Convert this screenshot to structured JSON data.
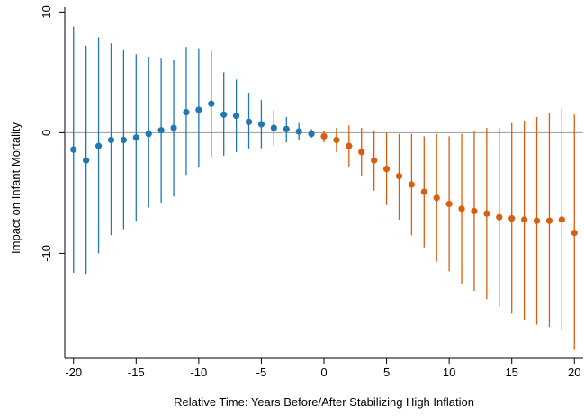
{
  "chart_data": {
    "type": "scatter",
    "title": "",
    "xlabel": "Relative Time:  Years Before/After Stabilizing High Inflation",
    "ylabel": "Impact on Infant Mortality",
    "xlim": [
      -20.7,
      20.7
    ],
    "ylim": [
      -18.7,
      10.4
    ],
    "xticks": [
      -20,
      -15,
      -10,
      -5,
      0,
      5,
      10,
      15,
      20
    ],
    "yticks": [
      -10,
      0,
      10
    ],
    "reference_line_y": 0,
    "grid": false,
    "legend": "none",
    "colors": {
      "before": "#1f77b4",
      "after": "#d95f0e",
      "reference": "#999999"
    },
    "series": [
      {
        "x": [
          -20,
          -19,
          -18,
          -17,
          -16,
          -15,
          -14,
          -13,
          -12,
          -11,
          -10,
          -9,
          -8,
          -7,
          -6,
          -5,
          -4,
          -3,
          -2,
          -1
        ],
        "y": [
          -1.4,
          -2.3,
          -1.1,
          -0.6,
          -0.6,
          -0.4,
          -0.1,
          0.2,
          0.4,
          1.7,
          1.9,
          2.4,
          1.5,
          1.4,
          0.9,
          0.7,
          0.4,
          0.3,
          0.1,
          -0.1
        ],
        "ci_low": [
          -11.6,
          -11.7,
          -10.0,
          -8.5,
          -8.0,
          -7.3,
          -6.2,
          -5.8,
          -5.3,
          -3.5,
          -2.9,
          -2.0,
          -1.9,
          -1.6,
          -1.3,
          -1.3,
          -1.1,
          -0.8,
          -0.6,
          -0.4
        ],
        "ci_high": [
          8.8,
          7.2,
          7.9,
          7.4,
          6.9,
          6.5,
          6.3,
          6.2,
          6.0,
          7.1,
          7.0,
          6.8,
          5.0,
          4.4,
          3.3,
          2.7,
          1.9,
          1.3,
          0.8,
          0.3
        ]
      },
      {
        "x": [
          0,
          1,
          2,
          3,
          4,
          5,
          6,
          7,
          8,
          9,
          10,
          11,
          12,
          13,
          14,
          15,
          16,
          17,
          18,
          19,
          20
        ],
        "y": [
          -0.3,
          -0.6,
          -1.1,
          -1.6,
          -2.3,
          -3.0,
          -3.6,
          -4.3,
          -4.9,
          -5.4,
          -5.9,
          -6.3,
          -6.5,
          -6.7,
          -7.0,
          -7.1,
          -7.2,
          -7.3,
          -7.3,
          -7.2,
          -8.3
        ],
        "ci_low": [
          -0.8,
          -1.6,
          -2.8,
          -3.6,
          -4.8,
          -6.0,
          -7.2,
          -8.5,
          -9.5,
          -10.7,
          -11.5,
          -12.5,
          -13.1,
          -13.8,
          -14.4,
          -15.0,
          -15.5,
          -15.9,
          -16.1,
          -16.4,
          -18.0
        ],
        "ci_high": [
          0.2,
          0.4,
          0.6,
          0.4,
          0.2,
          0.0,
          -0.1,
          -0.1,
          -0.3,
          -0.1,
          -0.3,
          -0.1,
          0.1,
          0.4,
          0.4,
          0.8,
          1.0,
          1.3,
          1.6,
          2.0,
          1.5
        ]
      }
    ]
  }
}
